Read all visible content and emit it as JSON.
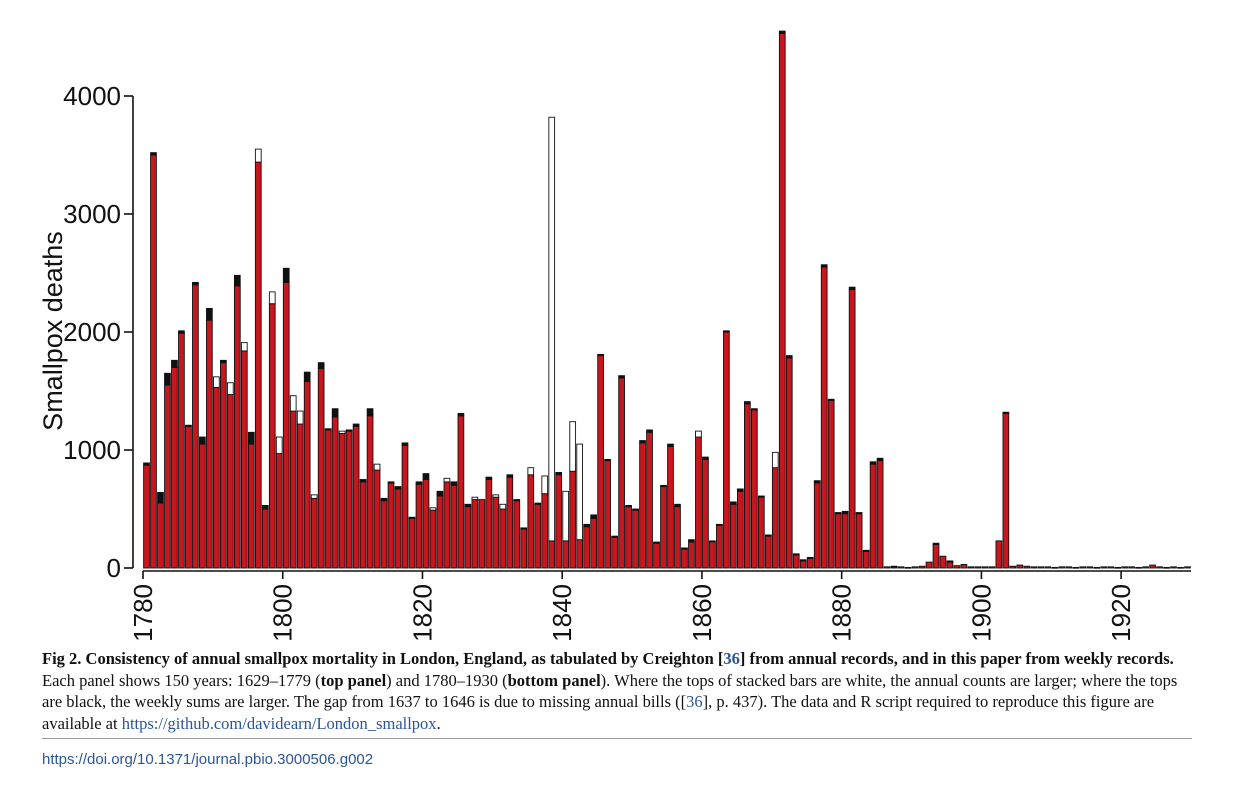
{
  "chart_data": {
    "type": "bar",
    "ylabel": "Smallpox deaths",
    "xlabel": "",
    "ylim": [
      0,
      4000
    ],
    "yticks": [
      0,
      1000,
      2000,
      3000,
      4000
    ],
    "xticks": [
      1780,
      1800,
      1820,
      1840,
      1860,
      1880,
      1900,
      1920
    ],
    "xlim": [
      1780,
      1930
    ],
    "legend": "none",
    "colors": {
      "annual": "#c8161e",
      "weekly_larger": "#111111",
      "annual_larger": "#ffffff",
      "outline": "#111111"
    },
    "series": [
      {
        "name": "",
        "x": [
          1780,
          1781,
          1782,
          1783,
          1784,
          1785,
          1786,
          1787,
          1788,
          1789,
          1790,
          1791,
          1792,
          1793,
          1794,
          1795,
          1796,
          1797,
          1798,
          1799,
          1800,
          1801,
          1802,
          1803,
          1804,
          1805,
          1806,
          1807,
          1808,
          1809,
          1810,
          1811,
          1812,
          1813,
          1814,
          1815,
          1816,
          1817,
          1818,
          1819,
          1820,
          1821,
          1822,
          1823,
          1824,
          1825,
          1826,
          1827,
          1828,
          1829,
          1830,
          1831,
          1832,
          1833,
          1834,
          1835,
          1836,
          1837,
          1838,
          1839,
          1840,
          1841,
          1842,
          1843,
          1844,
          1845,
          1846,
          1847,
          1848,
          1849,
          1850,
          1851,
          1852,
          1853,
          1854,
          1855,
          1856,
          1857,
          1858,
          1859,
          1860,
          1861,
          1862,
          1863,
          1864,
          1865,
          1866,
          1867,
          1868,
          1869,
          1870,
          1871,
          1872,
          1873,
          1874,
          1875,
          1876,
          1877,
          1878,
          1879,
          1880,
          1881,
          1882,
          1883,
          1884,
          1885,
          1886,
          1887,
          1888,
          1889,
          1890,
          1891,
          1892,
          1893,
          1894,
          1895,
          1896,
          1897,
          1898,
          1899,
          1900,
          1901,
          1902,
          1903,
          1904,
          1905,
          1906,
          1907,
          1908,
          1909,
          1910,
          1911,
          1912,
          1913,
          1914,
          1915,
          1916,
          1917,
          1918,
          1919,
          1920,
          1921,
          1922,
          1923,
          1924,
          1925,
          1926,
          1927,
          1928,
          1929
        ],
        "annual": [
          871,
          3500,
          550,
          1550,
          1700,
          1990,
          1200,
          2400,
          1050,
          2100,
          1620,
          1740,
          1570,
          2390,
          1910,
          1050,
          3550,
          500,
          2340,
          1110,
          2420,
          1460,
          1330,
          1580,
          620,
          1690,
          1170,
          1280,
          1160,
          1160,
          1200,
          730,
          1290,
          880,
          570,
          720,
          670,
          1040,
          420,
          710,
          750,
          510,
          610,
          760,
          700,
          1290,
          520,
          600,
          580,
          750,
          620,
          540,
          770,
          570,
          330,
          850,
          540,
          780,
          3820,
          790,
          650,
          1240,
          1050,
          350,
          420,
          1800,
          910,
          260,
          1610,
          520,
          490,
          1060,
          1150,
          210,
          690,
          1030,
          520,
          160,
          220,
          1160,
          920,
          220,
          360,
          2000,
          540,
          650,
          1390,
          1340,
          600,
          270,
          980,
          4530,
          1780,
          110,
          60,
          80,
          720,
          2550,
          1420,
          460,
          460,
          2360,
          460,
          140,
          880,
          910,
          10,
          10,
          10,
          5,
          10,
          15,
          50,
          200,
          100,
          50,
          20,
          30,
          10,
          10,
          10,
          10,
          230,
          1310,
          15,
          25,
          15,
          10,
          10,
          10,
          5,
          10,
          10,
          5,
          10,
          10,
          5,
          10,
          10,
          5,
          10,
          10,
          5,
          10,
          25,
          10,
          5,
          10,
          5,
          10,
          10,
          10,
          20
        ],
        "weekly": [
          890,
          3520,
          640,
          1650,
          1760,
          2010,
          1210,
          2420,
          1110,
          2200,
          1530,
          1760,
          1470,
          2480,
          1840,
          1150,
          3440,
          530,
          2240,
          970,
          2540,
          1330,
          1220,
          1660,
          590,
          1740,
          1180,
          1350,
          1140,
          1170,
          1220,
          750,
          1350,
          830,
          590,
          730,
          690,
          1060,
          430,
          730,
          800,
          490,
          650,
          730,
          730,
          1310,
          540,
          580,
          580,
          770,
          600,
          500,
          790,
          580,
          340,
          790,
          550,
          630,
          230,
          810,
          230,
          820,
          240,
          370,
          450,
          1810,
          920,
          270,
          1630,
          530,
          500,
          1080,
          1170,
          220,
          700,
          1050,
          540,
          170,
          240,
          1110,
          940,
          230,
          370,
          2010,
          560,
          670,
          1410,
          1350,
          610,
          280,
          850,
          4550,
          1800,
          120,
          70,
          90,
          740,
          2570,
          1430,
          470,
          480,
          2380,
          470,
          150,
          900,
          930,
          10,
          15,
          10,
          5,
          10,
          15,
          50,
          210,
          100,
          60,
          20,
          30,
          10,
          10,
          10,
          10,
          230,
          1320,
          15,
          25,
          15,
          10,
          10,
          10,
          5,
          10,
          10,
          5,
          10,
          10,
          5,
          10,
          10,
          5,
          10,
          10,
          5,
          10,
          25,
          10,
          5,
          10,
          5,
          10,
          10,
          10,
          20
        ]
      }
    ]
  },
  "caption": {
    "label": "Fig 2.",
    "title": "Consistency of annual smallpox mortality in London, England, as tabulated by Creighton [",
    "ref1": "36",
    "title_end": "] from annual records, and in this paper from weekly records.",
    "text1": " Each panel shows 150 years: 1629–1779 (",
    "top_panel": "top panel",
    "text2": ") and 1780–1930 (",
    "bottom_panel": "bottom panel",
    "text3": "). Where the tops of stacked bars are white, the annual counts are larger; where the tops are black, the weekly sums are larger. The gap from 1637 to 1646 is due to missing annual bills ([",
    "ref2": "36",
    "text4": "], p. 437). The data and R script required to reproduce this figure are available at ",
    "link": "https://github.com/davidearn/London_smallpox",
    "text5": "."
  },
  "doi": "https://doi.org/10.1371/journal.pbio.3000506.g002"
}
